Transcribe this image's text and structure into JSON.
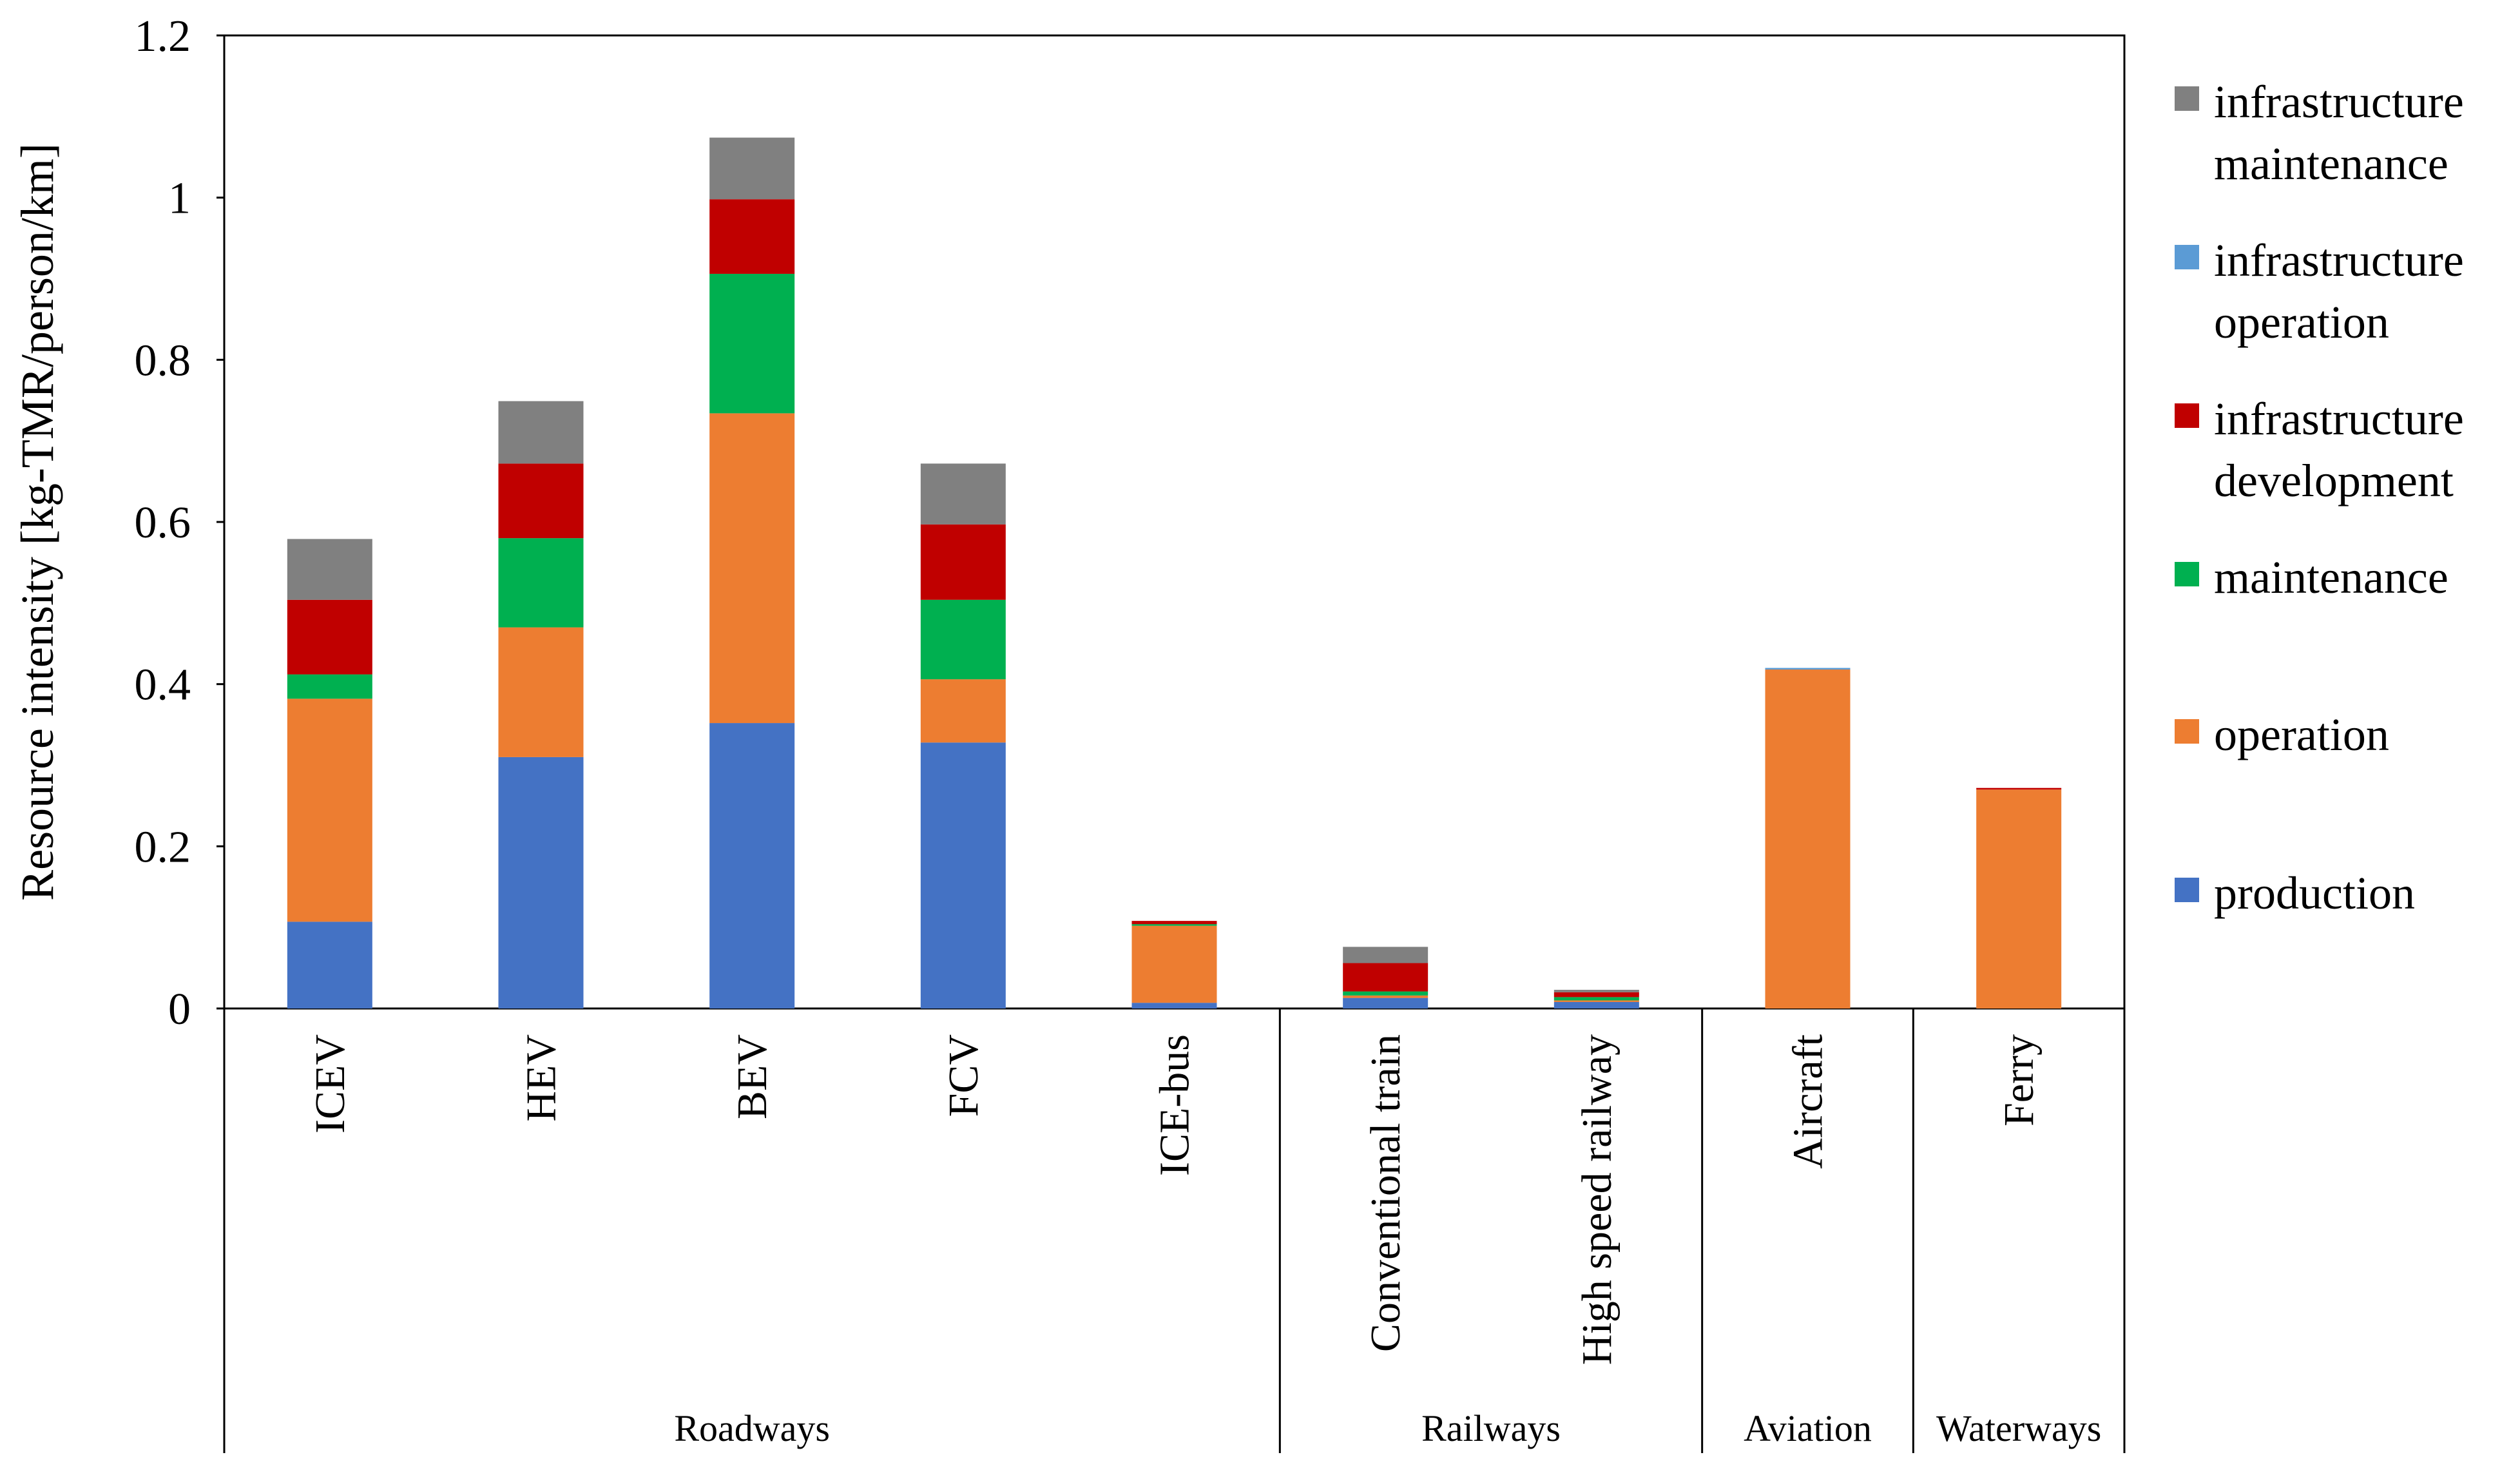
{
  "chart_data": {
    "type": "bar",
    "stacked": true,
    "title": "",
    "xlabel": "",
    "ylabel": "Resource intensity [kg-TMR/person/km]",
    "ylim": [
      0,
      1.2
    ],
    "yticks": [
      "0",
      "0.2",
      "0.4",
      "0.6",
      "0.8",
      "1",
      "1.2"
    ],
    "categories": [
      "ICEV",
      "HEV",
      "BEV",
      "FCV",
      "ICE-bus",
      "Conventional train",
      "High speed railway",
      "Aircraft",
      "Ferry"
    ],
    "groups": [
      {
        "label": "Roadways",
        "members": [
          "ICEV",
          "HEV",
          "BEV",
          "FCV",
          "ICE-bus"
        ]
      },
      {
        "label": "Railways",
        "members": [
          "Conventional train",
          "High speed railway"
        ]
      },
      {
        "label": "Aviation",
        "members": [
          "Aircraft"
        ]
      },
      {
        "label": "Waterways",
        "members": [
          "Ferry"
        ]
      }
    ],
    "series": [
      {
        "name": "production",
        "color": "#4472c4",
        "values": [
          0.107,
          0.31,
          0.352,
          0.328,
          0.007,
          0.013,
          0.008,
          0.0,
          0.0
        ]
      },
      {
        "name": "operation",
        "color": "#ed7d31",
        "values": [
          0.275,
          0.16,
          0.382,
          0.078,
          0.095,
          0.003,
          0.002,
          0.418,
          0.27
        ]
      },
      {
        "name": "maintenance",
        "color": "#00b050",
        "values": [
          0.03,
          0.11,
          0.172,
          0.098,
          0.002,
          0.005,
          0.004,
          0.0,
          0.0
        ]
      },
      {
        "name": "infrastructure development",
        "color": "#c00000",
        "values": [
          0.092,
          0.092,
          0.092,
          0.093,
          0.004,
          0.035,
          0.006,
          0.0,
          0.002
        ]
      },
      {
        "name": "infrastructure operation",
        "color": "#5b9bd5",
        "values": [
          0.0,
          0.0,
          0.0,
          0.0,
          0.0,
          0.0,
          0.0,
          0.002,
          0.0
        ]
      },
      {
        "name": "infrastructure maintenance",
        "color": "#808080",
        "values": [
          0.075,
          0.077,
          0.076,
          0.075,
          0.0,
          0.02,
          0.003,
          0.0,
          0.0
        ]
      }
    ],
    "legend": {
      "position": "right",
      "order": [
        "infrastructure maintenance",
        "infrastructure operation",
        "infrastructure development",
        "maintenance",
        "operation",
        "production"
      ],
      "labels": {
        "infrastructure maintenance": [
          "infrastructure",
          "maintenance"
        ],
        "infrastructure operation": [
          "infrastructure",
          "operation"
        ],
        "infrastructure development": [
          "infrastructure",
          "development"
        ],
        "maintenance": [
          "maintenance"
        ],
        "operation": [
          "operation"
        ],
        "production": [
          "production"
        ]
      }
    }
  }
}
